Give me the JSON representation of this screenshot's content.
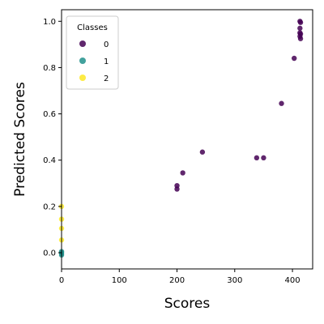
{
  "chart_data": {
    "type": "scatter",
    "title": "",
    "xlabel": "Scores",
    "ylabel": "Predicted Scores",
    "xlim": [
      0,
      435
    ],
    "ylim": [
      -0.07,
      1.05
    ],
    "xticks": [
      0,
      100,
      200,
      300,
      400
    ],
    "yticks": [
      0.0,
      0.2,
      0.4,
      0.6,
      0.8,
      1.0
    ],
    "ytick_labels": [
      "0.0",
      "0.2",
      "0.4",
      "0.6",
      "0.8",
      "1.0"
    ],
    "grid": false,
    "legend": {
      "title": "Classes",
      "location": "upper-left"
    },
    "series": [
      {
        "name": "0",
        "color": "#440154",
        "points": [
          [
            200,
            0.29
          ],
          [
            200,
            0.275
          ],
          [
            210,
            0.345
          ],
          [
            244,
            0.435
          ],
          [
            338,
            0.41
          ],
          [
            350,
            0.41
          ],
          [
            381,
            0.645
          ],
          [
            403,
            0.84
          ],
          [
            413,
            1.0
          ],
          [
            414,
            0.995
          ],
          [
            413,
            0.97
          ],
          [
            413,
            0.95
          ],
          [
            414,
            0.945
          ],
          [
            413,
            0.935
          ],
          [
            414,
            0.925
          ]
        ]
      },
      {
        "name": "1",
        "color": "#21918c",
        "points": [
          [
            0,
            0.0
          ],
          [
            0,
            -0.01
          ],
          [
            0,
            0.005
          ],
          [
            0,
            -0.005
          ]
        ]
      },
      {
        "name": "2",
        "color": "#fde725",
        "points": [
          [
            0,
            0.2
          ],
          [
            0,
            0.145
          ],
          [
            0,
            0.105
          ],
          [
            0,
            0.055
          ]
        ]
      }
    ]
  }
}
